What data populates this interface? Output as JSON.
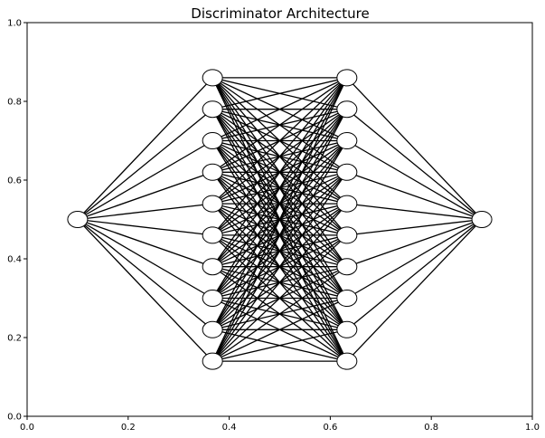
{
  "chart_data": {
    "type": "network",
    "title": "Discriminator Architecture",
    "xlim": [
      0,
      1
    ],
    "ylim": [
      0,
      1
    ],
    "xticks": [
      0,
      0.2,
      0.4,
      0.6,
      0.8,
      1
    ],
    "xtick_labels": [
      "0.0",
      "0.2",
      "0.4",
      "0.6",
      "0.8",
      "1.0"
    ],
    "yticks": [
      0,
      0.2,
      0.4,
      0.6,
      0.8,
      1
    ],
    "ytick_labels": [
      "0.0",
      "0.2",
      "0.4",
      "0.6",
      "0.8",
      "1.0"
    ],
    "grid": false,
    "layers": [
      {
        "x": 0.1,
        "nodes_y": [
          0.5
        ]
      },
      {
        "x": 0.367,
        "nodes_y": [
          0.86,
          0.78,
          0.7,
          0.62,
          0.54,
          0.46,
          0.38,
          0.3,
          0.22,
          0.14
        ]
      },
      {
        "x": 0.633,
        "nodes_y": [
          0.86,
          0.78,
          0.7,
          0.62,
          0.54,
          0.46,
          0.38,
          0.3,
          0.22,
          0.14
        ]
      },
      {
        "x": 0.9,
        "nodes_y": [
          0.5
        ]
      }
    ],
    "connections": "fully-connected between adjacent layers",
    "colors": {
      "edge": "#000000",
      "node_fill": "#ffffff",
      "node_stroke": "#000000",
      "frame": "#000000"
    }
  }
}
